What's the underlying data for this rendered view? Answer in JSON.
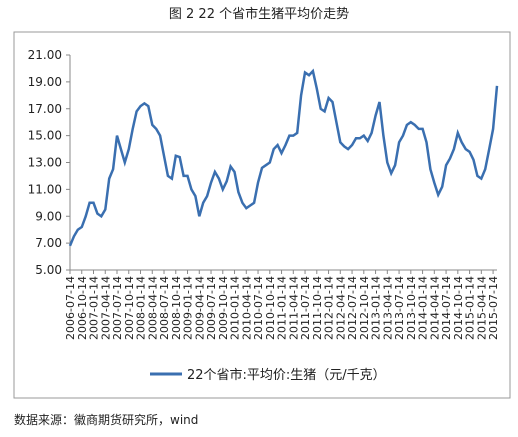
{
  "chart_data": {
    "type": "line",
    "title": "图 2 22 个省市生猪平均价走势",
    "source": "数据来源：徽商期货研究所，wind",
    "categories": [
      "2006-07-14",
      null,
      null,
      "2006-10-14",
      null,
      null,
      "2007-01-14",
      null,
      null,
      "2007-04-14",
      null,
      null,
      "2007-07-14",
      null,
      null,
      "2007-10-14",
      null,
      null,
      "2008-01-14",
      null,
      null,
      "2008-04-14",
      null,
      null,
      "2008-07-14",
      null,
      null,
      "2008-10-14",
      null,
      null,
      "2009-01-14",
      null,
      null,
      "2009-04-14",
      null,
      null,
      "2009-07-14",
      null,
      null,
      "2009-10-14",
      null,
      null,
      "2010-01-14",
      null,
      null,
      "2010-04-14",
      null,
      null,
      "2010-07-14",
      null,
      null,
      "2010-10-14",
      null,
      null,
      "2011-01-14",
      null,
      null,
      "2011-04-14",
      null,
      null,
      "2011-07-14",
      null,
      null,
      "2011-10-14",
      null,
      null,
      "2012-01-14",
      null,
      null,
      "2012-04-14",
      null,
      null,
      "2012-07-14",
      null,
      null,
      "2012-10-14",
      null,
      null,
      "2013-01-14",
      null,
      null,
      "2013-04-14",
      null,
      null,
      "2013-07-14",
      null,
      null,
      "2013-10-14",
      null,
      null,
      "2014-01-14",
      null,
      null,
      "2014-04-14",
      null,
      null,
      "2014-07-14",
      null,
      null,
      "2014-10-14",
      null,
      null,
      "2015-01-14",
      null,
      null,
      "2015-04-14",
      null,
      null,
      "2015-07-14",
      null
    ],
    "series": [
      {
        "name": "22个省市:平均价:生猪（元/千克）",
        "color": "#3a6fb0",
        "values": [
          6.8,
          7.5,
          8.0,
          8.2,
          9.0,
          10.0,
          10.0,
          9.2,
          9.0,
          9.5,
          11.8,
          12.5,
          15.0,
          14.0,
          13.0,
          14.0,
          15.5,
          16.8,
          17.2,
          17.4,
          17.2,
          15.8,
          15.5,
          15.0,
          13.5,
          12.0,
          11.8,
          13.5,
          13.4,
          12.0,
          12.0,
          11.0,
          10.5,
          9.0,
          10.0,
          10.5,
          11.5,
          12.3,
          11.8,
          11.0,
          11.6,
          12.7,
          12.3,
          10.8,
          10.0,
          9.6,
          9.8,
          10.0,
          11.5,
          12.6,
          12.8,
          13.0,
          14.0,
          14.3,
          13.7,
          14.3,
          15.0,
          15.0,
          15.2,
          18.0,
          19.7,
          19.5,
          19.8,
          18.5,
          17.0,
          16.8,
          17.8,
          17.5,
          16.0,
          14.5,
          14.2,
          14.0,
          14.3,
          14.8,
          14.8,
          15.0,
          14.6,
          15.2,
          16.5,
          17.5,
          15.0,
          13.0,
          12.2,
          12.8,
          14.5,
          15.0,
          15.8,
          16.0,
          15.8,
          15.5,
          15.5,
          14.5,
          12.5,
          11.5,
          10.6,
          11.2,
          12.8,
          13.3,
          14.0,
          15.2,
          14.5,
          14.0,
          13.8,
          13.2,
          12.0,
          11.8,
          12.5,
          14.0,
          15.5,
          18.7
        ]
      }
    ],
    "ylim": [
      5,
      21
    ],
    "yticks": [
      {
        "value": 5,
        "label": "5.00"
      },
      {
        "value": 7,
        "label": "7.00"
      },
      {
        "value": 9,
        "label": "9.00"
      },
      {
        "value": 11,
        "label": "11.00"
      },
      {
        "value": 13,
        "label": "13.00"
      },
      {
        "value": 15,
        "label": "15.00"
      },
      {
        "value": 17,
        "label": "17.00"
      },
      {
        "value": 19,
        "label": "19.00"
      },
      {
        "value": 21,
        "label": "21.00"
      }
    ],
    "grid": false
  }
}
